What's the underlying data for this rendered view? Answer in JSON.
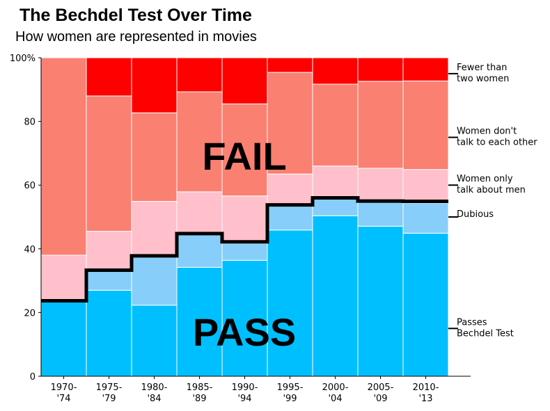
{
  "chart_data": {
    "type": "bar",
    "stacked": true,
    "title": "The Bechdel Test Over Time",
    "subtitle": "How women are represented in movies",
    "categories": [
      "1970-\n'74",
      "1975-\n'79",
      "1980-\n'84",
      "1985-\n'89",
      "1990-\n'94",
      "1995-\n'99",
      "2000-\n'04",
      "2005-\n'09",
      "2010-\n'13"
    ],
    "ylim": [
      0,
      100
    ],
    "yticks": [
      0,
      20,
      40,
      60,
      80,
      100
    ],
    "ytick_labels": [
      "0",
      "20",
      "40",
      "60",
      "80",
      "100%"
    ],
    "series": [
      {
        "name": "Passes\nBechdel Test",
        "color": "#00BFFF",
        "values": [
          23.5,
          27.0,
          22.3,
          34.2,
          36.4,
          45.9,
          50.4,
          47.1,
          44.9
        ]
      },
      {
        "name": "Dubious",
        "color": "#87CEFA",
        "values": [
          0.0,
          6.3,
          15.4,
          10.6,
          5.3,
          7.8,
          5.3,
          7.6,
          9.5
        ]
      },
      {
        "name": "Women only\ntalk about men",
        "color": "#FFC0CB",
        "values": [
          14.5,
          12.2,
          17.2,
          13.1,
          14.9,
          9.8,
          10.3,
          10.6,
          10.5
        ]
      },
      {
        "name": "Women don't\ntalk to each other",
        "color": "#FA8072",
        "values": [
          62.0,
          42.5,
          27.8,
          31.4,
          28.9,
          31.9,
          25.7,
          27.3,
          27.8
        ]
      },
      {
        "name": "Fewer than\ntwo women",
        "color": "#FF0000",
        "values": [
          0.0,
          12.0,
          17.3,
          10.7,
          14.5,
          4.6,
          8.3,
          7.4,
          7.3
        ]
      }
    ],
    "pass_line": {
      "values": [
        23.7,
        33.3,
        37.8,
        44.8,
        42.2,
        53.8,
        56.0,
        55.0,
        54.9
      ]
    },
    "legend_marker_y": [
      15,
      50,
      60,
      75,
      95
    ],
    "annotations": [
      "FAIL",
      "PASS"
    ],
    "grid": false,
    "legend": "right"
  }
}
